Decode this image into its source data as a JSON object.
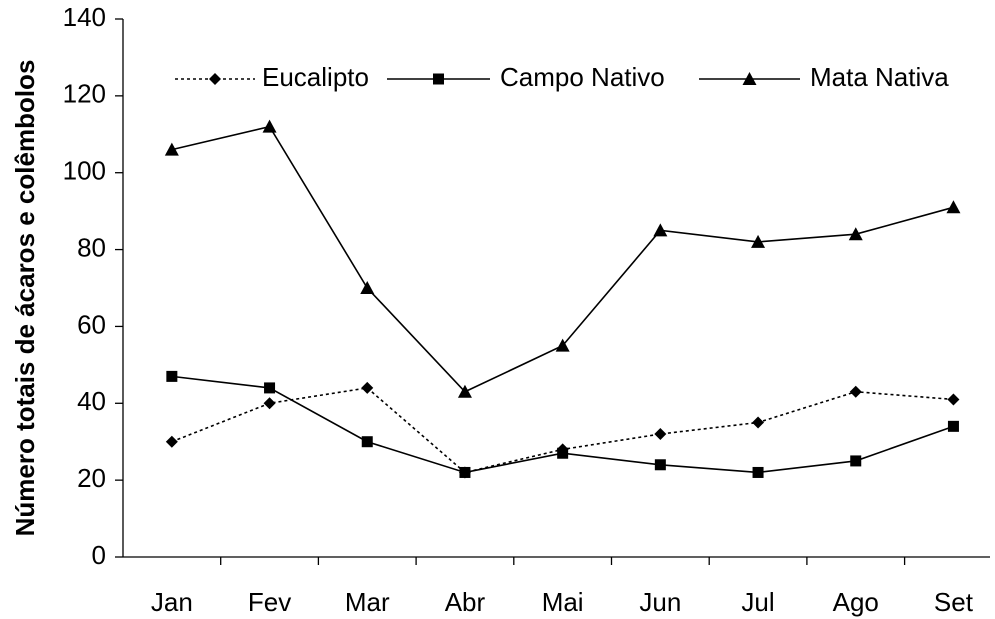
{
  "chart_data": {
    "type": "line",
    "y_label": "Número totais de ácaros e colêmbolos",
    "categories": [
      "Jan",
      "Fev",
      "Mar",
      "Abr",
      "Mai",
      "Jun",
      "Jul",
      "Ago",
      "Set"
    ],
    "series": [
      {
        "name": "Eucalipto",
        "color": "#000000",
        "linestyle": "dotted",
        "marker": "diamond",
        "values": [
          30,
          40,
          44,
          22,
          28,
          32,
          35,
          43,
          41
        ]
      },
      {
        "name": "Campo Nativo",
        "color": "#000000",
        "linestyle": "solid",
        "marker": "square",
        "values": [
          47,
          44,
          30,
          22,
          27,
          24,
          22,
          25,
          34
        ]
      },
      {
        "name": "Mata Nativa",
        "color": "#000000",
        "linestyle": "solid",
        "marker": "triangle",
        "values": [
          106,
          112,
          70,
          43,
          55,
          85,
          82,
          84,
          91
        ]
      }
    ],
    "ylim": [
      0,
      140
    ],
    "yticks": [
      0,
      20,
      40,
      60,
      80,
      100,
      120,
      140
    ],
    "grid": false,
    "legend": "top"
  }
}
